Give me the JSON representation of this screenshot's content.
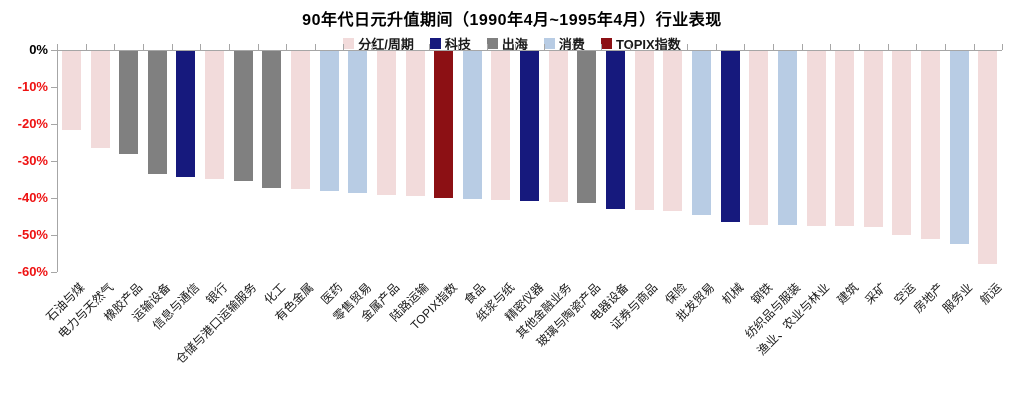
{
  "chart_data": {
    "type": "bar",
    "title": "90年代日元升值期间（1990年4月~1995年4月）行业表现",
    "xlabel": "",
    "ylabel": "",
    "ylim": [
      -60,
      0
    ],
    "grid": false,
    "legend_position": "top",
    "y_ticks": [
      "0%",
      "-10%",
      "-20%",
      "-30%",
      "-40%",
      "-50%",
      "-60%"
    ],
    "legend": [
      "分红/周期",
      "科技",
      "出海",
      "消费",
      "TOPIX指数"
    ],
    "colors": {
      "分红/周期": "#f2dbdb",
      "科技": "#16197d",
      "出海": "#808080",
      "消费": "#b8cce4",
      "TOPIX指数": "#8c1014"
    },
    "axis_colors": {
      "zero_tick_label": "#000000",
      "negative_tick_label": "#ee1111",
      "axis_line": "#a6a6a6"
    },
    "bars": [
      {
        "label": "石油与煤",
        "group": "分红/周期",
        "value": -21.4
      },
      {
        "label": "电力与天然气",
        "group": "分红/周期",
        "value": -26.3
      },
      {
        "label": "橡胶产品",
        "group": "出海",
        "value": -27.7
      },
      {
        "label": "运输设备",
        "group": "出海",
        "value": -33.3
      },
      {
        "label": "信息与通信",
        "group": "科技",
        "value": -34.1
      },
      {
        "label": "银行",
        "group": "分红/周期",
        "value": -34.6
      },
      {
        "label": "仓储与港口运输服务",
        "group": "出海",
        "value": -35.1
      },
      {
        "label": "化工",
        "group": "出海",
        "value": -36.9
      },
      {
        "label": "有色金属",
        "group": "分红/周期",
        "value": -37.2
      },
      {
        "label": "医药",
        "group": "消费",
        "value": -37.9
      },
      {
        "label": "零售贸易",
        "group": "消费",
        "value": -38.4
      },
      {
        "label": "金属产品",
        "group": "分红/周期",
        "value": -38.9
      },
      {
        "label": "陆路运输",
        "group": "分红/周期",
        "value": -39.3
      },
      {
        "label": "TOPIX指数",
        "group": "TOPIX指数",
        "value": -39.7
      },
      {
        "label": "食品",
        "group": "消费",
        "value": -40.0
      },
      {
        "label": "纸浆与纸",
        "group": "分红/周期",
        "value": -40.2
      },
      {
        "label": "精密仪器",
        "group": "科技",
        "value": -40.5
      },
      {
        "label": "其他金融业务",
        "group": "分红/周期",
        "value": -40.8
      },
      {
        "label": "玻璃与陶瓷产品",
        "group": "出海",
        "value": -41.0
      },
      {
        "label": "电器设备",
        "group": "科技",
        "value": -42.6
      },
      {
        "label": "证券与商品",
        "group": "分红/周期",
        "value": -43.0
      },
      {
        "label": "保险",
        "group": "分红/周期",
        "value": -43.3
      },
      {
        "label": "批发贸易",
        "group": "消费",
        "value": -44.4
      },
      {
        "label": "机械",
        "group": "科技",
        "value": -46.1
      },
      {
        "label": "钢铁",
        "group": "分红/周期",
        "value": -47.0
      },
      {
        "label": "纺织品与服装",
        "group": "消费",
        "value": -47.1
      },
      {
        "label": "渔业、农业与林业",
        "group": "分红/周期",
        "value": -47.2
      },
      {
        "label": "建筑",
        "group": "分红/周期",
        "value": -47.3
      },
      {
        "label": "采矿",
        "group": "分红/周期",
        "value": -47.5
      },
      {
        "label": "空运",
        "group": "分红/周期",
        "value": -49.8
      },
      {
        "label": "房地产",
        "group": "分红/周期",
        "value": -50.9
      },
      {
        "label": "服务业",
        "group": "消费",
        "value": -52.1
      },
      {
        "label": "航运",
        "group": "分红/周期",
        "value": -57.5
      }
    ]
  }
}
